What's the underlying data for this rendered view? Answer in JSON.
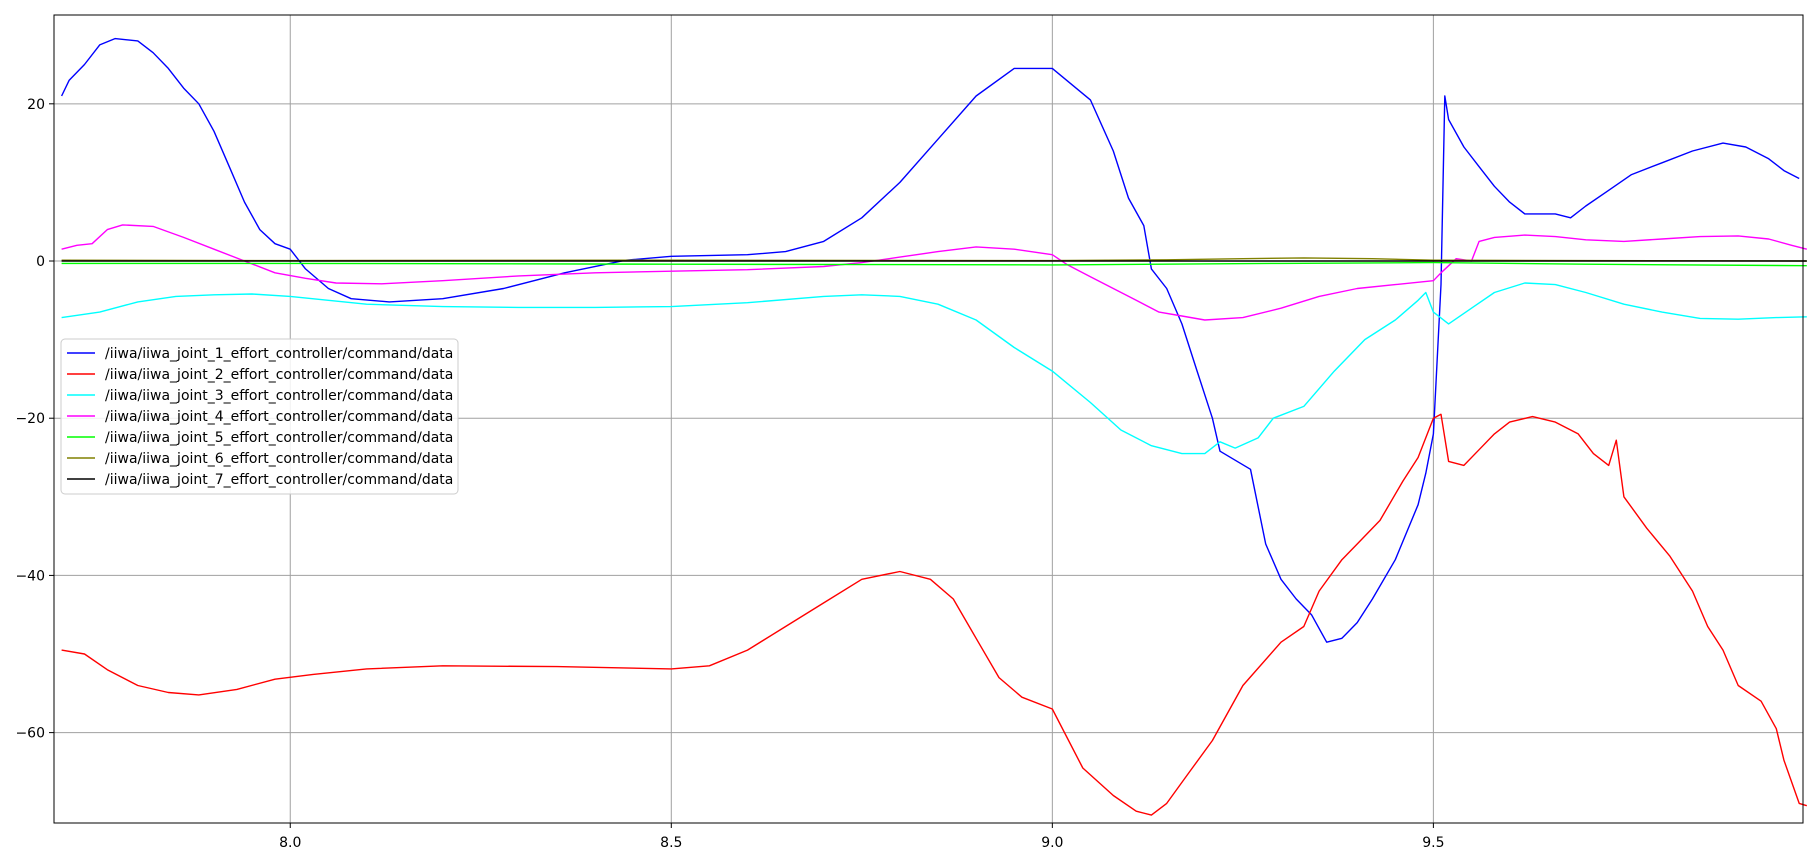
{
  "chart_data": {
    "type": "line",
    "title": "",
    "xlabel": "",
    "ylabel": "",
    "xlim": [
      7.69,
      9.985
    ],
    "ylim": [
      -71.5,
      31.3
    ],
    "xticks": [
      8.0,
      8.5,
      9.0,
      9.5
    ],
    "xtick_labels": [
      "8.0",
      "8.5",
      "9.0",
      "9.5"
    ],
    "yticks": [
      -60,
      -40,
      -20,
      0,
      20
    ],
    "ytick_labels": [
      "−60",
      "−40",
      "−20",
      "0",
      "20"
    ],
    "grid": true,
    "legend_position": "center-left",
    "series": [
      {
        "name": "/iiwa/iiwa_joint_1_effort_controller/command/data",
        "color": "#0000ff",
        "points": [
          [
            7.7,
            21
          ],
          [
            7.71,
            23
          ],
          [
            7.73,
            25
          ],
          [
            7.75,
            27.5
          ],
          [
            7.77,
            28.3
          ],
          [
            7.8,
            28
          ],
          [
            7.82,
            26.5
          ],
          [
            7.84,
            24.5
          ],
          [
            7.86,
            22
          ],
          [
            7.88,
            20
          ],
          [
            7.9,
            16.5
          ],
          [
            7.92,
            12
          ],
          [
            7.94,
            7.5
          ],
          [
            7.96,
            4
          ],
          [
            7.98,
            2.2
          ],
          [
            8.0,
            1.5
          ],
          [
            8.02,
            -1
          ],
          [
            8.05,
            -3.5
          ],
          [
            8.08,
            -4.8
          ],
          [
            8.13,
            -5.2
          ],
          [
            8.2,
            -4.8
          ],
          [
            8.28,
            -3.5
          ],
          [
            8.36,
            -1.5
          ],
          [
            8.44,
            0.1
          ],
          [
            8.5,
            0.6
          ],
          [
            8.6,
            0.8
          ],
          [
            8.65,
            1.2
          ],
          [
            8.7,
            2.5
          ],
          [
            8.75,
            5.5
          ],
          [
            8.8,
            10
          ],
          [
            8.85,
            15.5
          ],
          [
            8.9,
            21
          ],
          [
            8.95,
            24.5
          ],
          [
            9.0,
            24.5
          ],
          [
            9.05,
            20.5
          ],
          [
            9.08,
            14
          ],
          [
            9.1,
            8
          ],
          [
            9.12,
            4.5
          ],
          [
            9.13,
            -1
          ],
          [
            9.15,
            -3.5
          ],
          [
            9.17,
            -8
          ],
          [
            9.19,
            -14
          ],
          [
            9.21,
            -20
          ],
          [
            9.22,
            -24.2
          ],
          [
            9.26,
            -26.5
          ],
          [
            9.28,
            -36
          ],
          [
            9.3,
            -40.5
          ],
          [
            9.32,
            -43
          ],
          [
            9.34,
            -45
          ],
          [
            9.36,
            -48.5
          ],
          [
            9.38,
            -48
          ],
          [
            9.4,
            -46
          ],
          [
            9.42,
            -43
          ],
          [
            9.45,
            -38
          ],
          [
            9.48,
            -31
          ],
          [
            9.49,
            -27
          ],
          [
            9.5,
            -22
          ],
          [
            9.51,
            -3
          ],
          [
            9.515,
            21
          ],
          [
            9.52,
            18
          ],
          [
            9.54,
            14.5
          ],
          [
            9.56,
            12
          ],
          [
            9.58,
            9.5
          ],
          [
            9.6,
            7.5
          ],
          [
            9.62,
            6
          ],
          [
            9.64,
            6
          ],
          [
            9.66,
            6
          ],
          [
            9.68,
            5.5
          ],
          [
            9.7,
            7
          ],
          [
            9.73,
            9
          ],
          [
            9.76,
            11
          ],
          [
            9.8,
            12.5
          ],
          [
            9.84,
            14
          ],
          [
            9.88,
            15
          ],
          [
            9.91,
            14.5
          ],
          [
            9.94,
            13
          ],
          [
            9.96,
            11.5
          ],
          [
            9.98,
            10.5
          ]
        ]
      },
      {
        "name": "/iiwa/iiwa_joint_2_effort_controller/command/data",
        "color": "#ff0000",
        "points": [
          [
            7.7,
            -49.5
          ],
          [
            7.73,
            -50
          ],
          [
            7.76,
            -52
          ],
          [
            7.8,
            -54
          ],
          [
            7.84,
            -54.9
          ],
          [
            7.88,
            -55.2
          ],
          [
            7.93,
            -54.5
          ],
          [
            7.98,
            -53.2
          ],
          [
            8.03,
            -52.6
          ],
          [
            8.1,
            -51.9
          ],
          [
            8.2,
            -51.5
          ],
          [
            8.35,
            -51.6
          ],
          [
            8.5,
            -51.9
          ],
          [
            8.55,
            -51.5
          ],
          [
            8.6,
            -49.5
          ],
          [
            8.65,
            -46.5
          ],
          [
            8.7,
            -43.5
          ],
          [
            8.75,
            -40.5
          ],
          [
            8.8,
            -39.5
          ],
          [
            8.84,
            -40.5
          ],
          [
            8.87,
            -43
          ],
          [
            8.9,
            -48
          ],
          [
            8.93,
            -53
          ],
          [
            8.96,
            -55.5
          ],
          [
            9.0,
            -57
          ],
          [
            9.04,
            -64.5
          ],
          [
            9.08,
            -68
          ],
          [
            9.11,
            -70
          ],
          [
            9.13,
            -70.5
          ],
          [
            9.15,
            -69
          ],
          [
            9.18,
            -65
          ],
          [
            9.21,
            -61
          ],
          [
            9.25,
            -54
          ],
          [
            9.3,
            -48.5
          ],
          [
            9.33,
            -46.5
          ],
          [
            9.35,
            -42
          ],
          [
            9.38,
            -38
          ],
          [
            9.4,
            -36
          ],
          [
            9.43,
            -33
          ],
          [
            9.46,
            -28
          ],
          [
            9.48,
            -25
          ],
          [
            9.5,
            -20
          ],
          [
            9.51,
            -19.5
          ],
          [
            9.52,
            -25.5
          ],
          [
            9.54,
            -26
          ],
          [
            9.56,
            -24
          ],
          [
            9.58,
            -22
          ],
          [
            9.6,
            -20.5
          ],
          [
            9.63,
            -19.8
          ],
          [
            9.66,
            -20.5
          ],
          [
            9.69,
            -22
          ],
          [
            9.71,
            -24.5
          ],
          [
            9.73,
            -26
          ],
          [
            9.74,
            -22.8
          ],
          [
            9.75,
            -30
          ],
          [
            9.78,
            -34
          ],
          [
            9.81,
            -37.5
          ],
          [
            9.84,
            -42
          ],
          [
            9.86,
            -46.5
          ],
          [
            9.88,
            -49.5
          ],
          [
            9.9,
            -54
          ],
          [
            9.93,
            -56
          ],
          [
            9.95,
            -59.5
          ],
          [
            9.96,
            -63.5
          ],
          [
            9.98,
            -69
          ],
          [
            9.99,
            -69.3
          ]
        ]
      },
      {
        "name": "/iiwa/iiwa_joint_3_effort_controller/command/data",
        "color": "#00ffff",
        "points": [
          [
            7.7,
            -7.2
          ],
          [
            7.75,
            -6.5
          ],
          [
            7.8,
            -5.2
          ],
          [
            7.85,
            -4.5
          ],
          [
            7.9,
            -4.3
          ],
          [
            7.95,
            -4.2
          ],
          [
            8.0,
            -4.5
          ],
          [
            8.1,
            -5.5
          ],
          [
            8.2,
            -5.8
          ],
          [
            8.3,
            -5.9
          ],
          [
            8.4,
            -5.9
          ],
          [
            8.5,
            -5.8
          ],
          [
            8.6,
            -5.3
          ],
          [
            8.7,
            -4.5
          ],
          [
            8.75,
            -4.3
          ],
          [
            8.8,
            -4.5
          ],
          [
            8.85,
            -5.5
          ],
          [
            8.9,
            -7.5
          ],
          [
            8.95,
            -11
          ],
          [
            9.0,
            -14
          ],
          [
            9.05,
            -18
          ],
          [
            9.09,
            -21.5
          ],
          [
            9.13,
            -23.5
          ],
          [
            9.17,
            -24.5
          ],
          [
            9.2,
            -24.5
          ],
          [
            9.22,
            -23
          ],
          [
            9.24,
            -23.8
          ],
          [
            9.27,
            -22.5
          ],
          [
            9.29,
            -20
          ],
          [
            9.33,
            -18.5
          ],
          [
            9.37,
            -14
          ],
          [
            9.41,
            -10
          ],
          [
            9.45,
            -7.5
          ],
          [
            9.48,
            -5
          ],
          [
            9.49,
            -4
          ],
          [
            9.5,
            -6.5
          ],
          [
            9.52,
            -8
          ],
          [
            9.55,
            -6
          ],
          [
            9.58,
            -4
          ],
          [
            9.62,
            -2.8
          ],
          [
            9.66,
            -3
          ],
          [
            9.7,
            -4
          ],
          [
            9.75,
            -5.5
          ],
          [
            9.8,
            -6.5
          ],
          [
            9.85,
            -7.3
          ],
          [
            9.9,
            -7.4
          ],
          [
            9.95,
            -7.2
          ],
          [
            9.99,
            -7.1
          ]
        ]
      },
      {
        "name": "/iiwa/iiwa_joint_4_effort_controller/command/data",
        "color": "#ff00ff",
        "points": [
          [
            7.7,
            1.5
          ],
          [
            7.72,
            2
          ],
          [
            7.74,
            2.2
          ],
          [
            7.76,
            4
          ],
          [
            7.78,
            4.6
          ],
          [
            7.82,
            4.4
          ],
          [
            7.86,
            3
          ],
          [
            7.9,
            1.5
          ],
          [
            7.94,
            0
          ],
          [
            7.98,
            -1.5
          ],
          [
            8.02,
            -2.2
          ],
          [
            8.06,
            -2.8
          ],
          [
            8.12,
            -2.9
          ],
          [
            8.2,
            -2.5
          ],
          [
            8.3,
            -1.9
          ],
          [
            8.4,
            -1.5
          ],
          [
            8.5,
            -1.3
          ],
          [
            8.6,
            -1.1
          ],
          [
            8.7,
            -0.7
          ],
          [
            8.75,
            -0.2
          ],
          [
            8.8,
            0.5
          ],
          [
            8.85,
            1.2
          ],
          [
            8.9,
            1.8
          ],
          [
            8.95,
            1.5
          ],
          [
            9.0,
            0.8
          ],
          [
            9.02,
            -0.5
          ],
          [
            9.05,
            -2
          ],
          [
            9.08,
            -3.5
          ],
          [
            9.11,
            -5
          ],
          [
            9.14,
            -6.5
          ],
          [
            9.17,
            -7
          ],
          [
            9.2,
            -7.5
          ],
          [
            9.25,
            -7.2
          ],
          [
            9.3,
            -6
          ],
          [
            9.35,
            -4.5
          ],
          [
            9.4,
            -3.5
          ],
          [
            9.45,
            -3
          ],
          [
            9.5,
            -2.5
          ],
          [
            9.51,
            -1.5
          ],
          [
            9.53,
            0.3
          ],
          [
            9.55,
            0
          ],
          [
            9.56,
            2.5
          ],
          [
            9.58,
            3
          ],
          [
            9.62,
            3.3
          ],
          [
            9.66,
            3.1
          ],
          [
            9.7,
            2.7
          ],
          [
            9.75,
            2.5
          ],
          [
            9.8,
            2.8
          ],
          [
            9.85,
            3.1
          ],
          [
            9.9,
            3.2
          ],
          [
            9.94,
            2.8
          ],
          [
            9.97,
            2
          ],
          [
            9.99,
            1.5
          ]
        ]
      },
      {
        "name": "/iiwa/iiwa_joint_5_effort_controller/command/data",
        "color": "#00ff00",
        "points": [
          [
            7.7,
            -0.3
          ],
          [
            8.0,
            -0.3
          ],
          [
            8.5,
            -0.4
          ],
          [
            9.0,
            -0.5
          ],
          [
            9.3,
            -0.3
          ],
          [
            9.5,
            -0.2
          ],
          [
            9.7,
            -0.4
          ],
          [
            9.99,
            -0.6
          ]
        ]
      },
      {
        "name": "/iiwa/iiwa_joint_6_effort_controller/command/data",
        "color": "#808000",
        "points": [
          [
            7.7,
            0.1
          ],
          [
            8.0,
            0.05
          ],
          [
            8.5,
            0.1
          ],
          [
            9.0,
            0.05
          ],
          [
            9.15,
            0.15
          ],
          [
            9.25,
            0.3
          ],
          [
            9.33,
            0.4
          ],
          [
            9.42,
            0.3
          ],
          [
            9.5,
            0.1
          ],
          [
            9.7,
            0.05
          ],
          [
            9.99,
            0.0
          ]
        ]
      },
      {
        "name": "/iiwa/iiwa_joint_7_effort_controller/command/data",
        "color": "#000000",
        "points": [
          [
            7.7,
            0.0
          ],
          [
            9.99,
            0.0
          ]
        ]
      }
    ]
  }
}
